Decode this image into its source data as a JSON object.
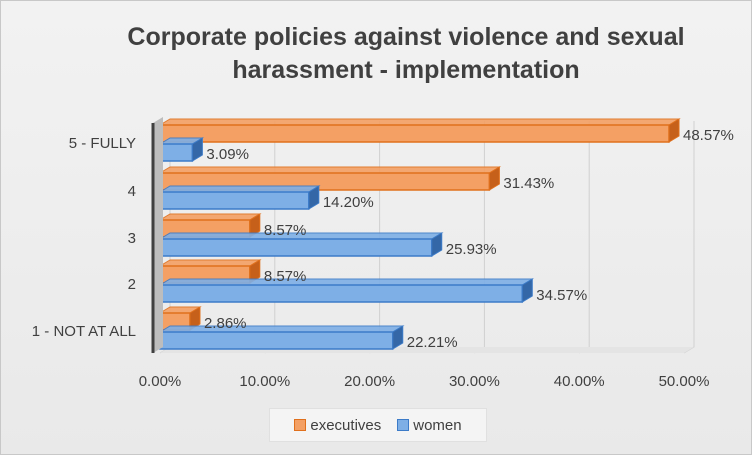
{
  "chart_data": {
    "type": "bar",
    "orientation": "horizontal",
    "style": "3d",
    "title": "Corporate policies against violence and sexual harassment - implementation",
    "categories": [
      "1 - NOT AT ALL",
      "2",
      "3",
      "4",
      "5 - FULLY"
    ],
    "series": [
      {
        "name": "executives",
        "values": [
          2.86,
          8.57,
          8.57,
          31.43,
          48.57
        ],
        "labels": [
          "2.86%",
          "8.57%",
          "8.57%",
          "31.43%",
          "48.57%"
        ],
        "color": "#F4A064",
        "edge_color": "#E0701C",
        "side_color": "#C6601A"
      },
      {
        "name": "women",
        "values": [
          22.21,
          34.57,
          25.93,
          14.2,
          3.09
        ],
        "labels": [
          "22.21%",
          "34.57%",
          "25.93%",
          "14.20%",
          "3.09%"
        ],
        "color": "#7EAFE6",
        "edge_color": "#3C7BC8",
        "side_color": "#3467A7"
      }
    ],
    "xlim": [
      0,
      50
    ],
    "x_ticks": [
      "0.00%",
      "10.00%",
      "20.00%",
      "30.00%",
      "40.00%",
      "50.00%"
    ],
    "grid": true,
    "legend_position": "bottom"
  }
}
